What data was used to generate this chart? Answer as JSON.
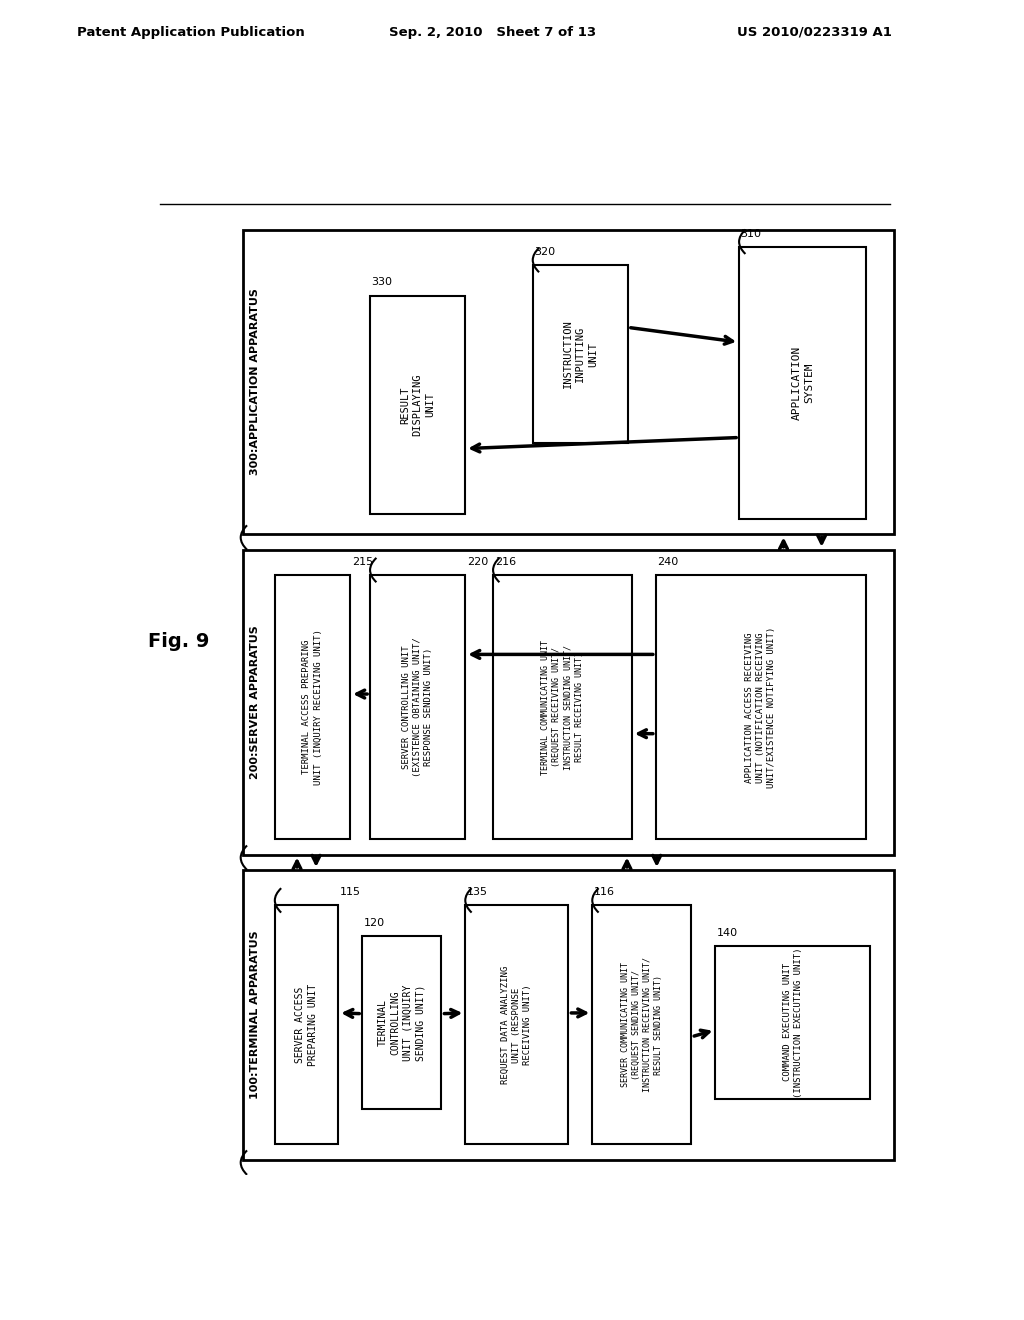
{
  "header_left": "Patent Application Publication",
  "header_center": "Sep. 2, 2010   Sheet 7 of 13",
  "header_right": "US 2010/0223319 A1",
  "fig_label": "Fig. 9",
  "bg": "#ffffff",
  "app_outer": [
    0.145,
    0.63,
    0.82,
    0.3
  ],
  "app_label": "300:APPLICATION APPARATUS",
  "app_sys": [
    0.77,
    0.645,
    0.16,
    0.268
  ],
  "app_sys_txt": "APPLICATION\nSYSTEM",
  "app_sys_num": "310",
  "instr_inp": [
    0.51,
    0.72,
    0.12,
    0.175
  ],
  "instr_inp_txt": "INSTRUCTION\nINPUTTING\nUNIT",
  "instr_inp_num": "320",
  "result_disp": [
    0.305,
    0.65,
    0.12,
    0.215
  ],
  "result_disp_txt": "RESULT\nDISPLAYING\nUNIT",
  "result_disp_num": "330",
  "srv_outer": [
    0.145,
    0.315,
    0.82,
    0.3
  ],
  "srv_label": "200:SERVER APPARATUS",
  "term_acc_prep": [
    0.185,
    0.33,
    0.095,
    0.26
  ],
  "term_acc_prep_txt": "TERMINAL ACCESS PREPARING\nUNIT (INQUIRY RECEIVING UNIT)",
  "term_acc_prep_num": "215",
  "srv_ctrl": [
    0.305,
    0.33,
    0.12,
    0.26
  ],
  "srv_ctrl_txt": "SERVER CONTROLLING UNIT\n(EXISTENCE OBTAINING UNIT/\nRESPONSE SENDING UNIT)",
  "srv_ctrl_num": "220",
  "term_comm": [
    0.46,
    0.33,
    0.175,
    0.26
  ],
  "term_comm_txt": "TERMINAL COMMUNICATING UNIT\n(REQUEST RECEIVING UNIT/\nINSTRUCTION SENDING UNIT/\nRESULT RECEIVING UNIT)",
  "term_comm_num": "216",
  "app_acc_recv": [
    0.665,
    0.33,
    0.265,
    0.26
  ],
  "app_acc_recv_txt": "APPLICATION ACCESS RECEIVING\nUNIT (NOTIFICATION RECEIVING\nUNIT/EXISTENCE NOTIFYING UNIT)",
  "app_acc_recv_num": "240",
  "trm_outer": [
    0.145,
    0.015,
    0.82,
    0.285
  ],
  "trm_label": "100:TERMINAL APPARATUS",
  "srv_acc_prep": [
    0.185,
    0.03,
    0.08,
    0.235
  ],
  "srv_acc_prep_txt": "SERVER ACCESS\nPREPARING UNIT",
  "srv_acc_prep_num": "115",
  "trm_ctrl": [
    0.295,
    0.065,
    0.1,
    0.17
  ],
  "trm_ctrl_txt": "TERMINAL\nCONTROLLING\nUNIT (INQUIRY\nSENDING UNIT)",
  "trm_ctrl_num": "120",
  "req_data_anal": [
    0.425,
    0.03,
    0.13,
    0.235
  ],
  "req_data_anal_txt": "REQUEST DATA ANALYZING\nUNIT (RESPONSE\nRECEIVING UNIT)",
  "req_data_anal_num": "135",
  "srv_comm": [
    0.585,
    0.03,
    0.125,
    0.235
  ],
  "srv_comm_txt": "SERVER COMMUNICATING UNIT\n(REQUEST SENDING UNIT/\nINSTRUCTION RECEIVING UNIT/\nRESULT SENDING UNIT)",
  "srv_comm_num": "116",
  "cmd_exec": [
    0.74,
    0.075,
    0.195,
    0.15
  ],
  "cmd_exec_txt": "COMMAND EXECUTING UNIT\n(INSTRUCTION EXECUTING UNIT)",
  "cmd_exec_num": "140"
}
